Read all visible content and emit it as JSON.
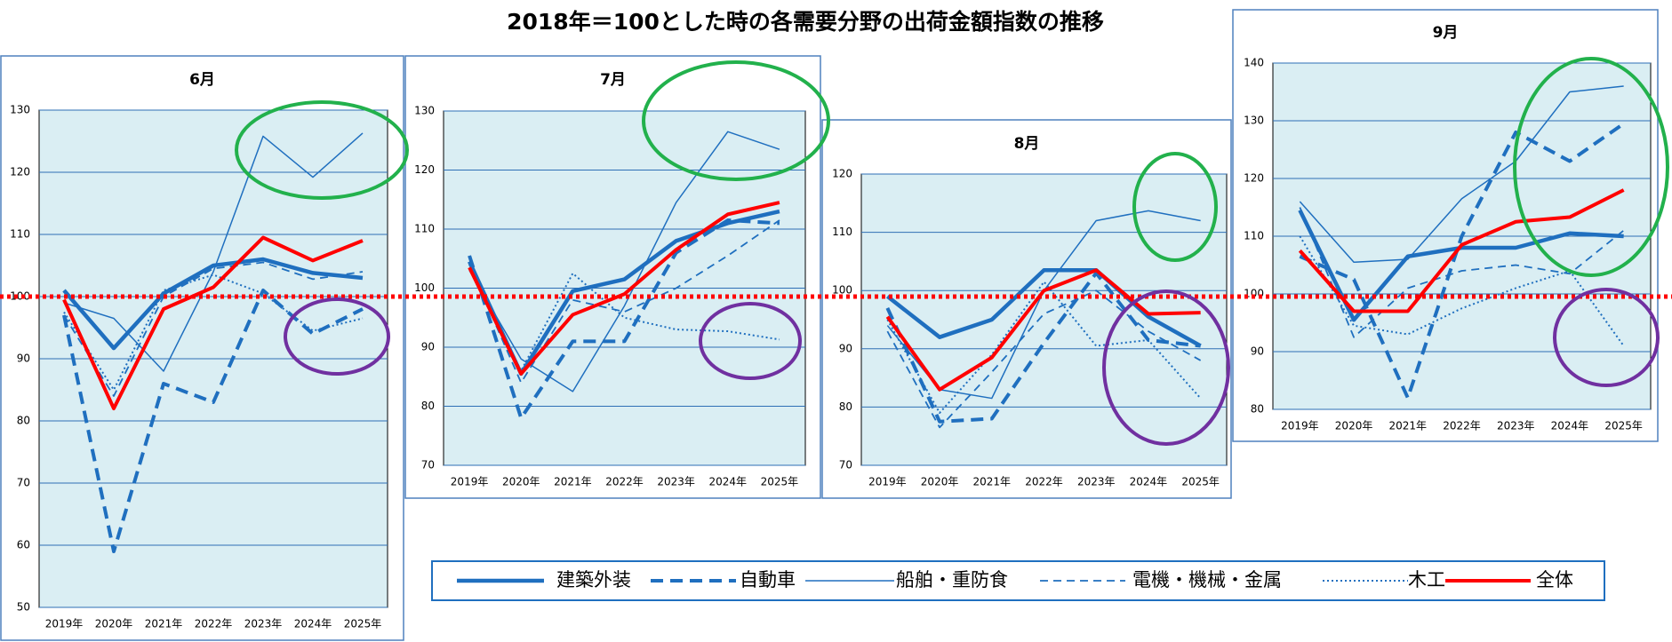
{
  "title": "2018年＝100とした時の各需要分野の出荷金額指数の推移",
  "reference_line": {
    "value": 100,
    "color": "#ff0000"
  },
  "chart_data": [
    {
      "type": "line",
      "title": "6月",
      "categories": [
        "2019年",
        "2020年",
        "2021年",
        "2022年",
        "2023年",
        "2024年",
        "2025年"
      ],
      "ylim": [
        50,
        130
      ],
      "yticks": [
        50,
        60,
        70,
        80,
        90,
        100,
        110,
        120,
        130
      ],
      "grid": true,
      "series": [
        {
          "name": "建築外装",
          "color": "#1f6fbf",
          "width": 4.5,
          "dash": "none",
          "values": [
            101,
            91.7,
            100.5,
            105,
            106,
            103.8,
            103
          ]
        },
        {
          "name": "自動車",
          "color": "#1f6fbf",
          "width": 4,
          "dash": "14,8",
          "values": [
            97,
            59,
            86,
            83,
            101,
            94,
            98
          ]
        },
        {
          "name": "船舶・重防食",
          "color": "#1f6fbf",
          "width": 1.5,
          "dash": "none",
          "values": [
            99,
            96.5,
            88,
            104,
            125.8,
            119.2,
            126.3
          ]
        },
        {
          "name": "電機・機械・金属",
          "color": "#1f6fbf",
          "width": 1.8,
          "dash": "9,6",
          "values": [
            97,
            84,
            100,
            104.5,
            105.5,
            102.8,
            104
          ]
        },
        {
          "name": "木工",
          "color": "#1f6fbf",
          "width": 2,
          "dash": "2,3",
          "values": [
            97.5,
            85,
            101,
            103.5,
            100.5,
            94.5,
            96.5
          ]
        },
        {
          "name": "全体",
          "color": "#ff0000",
          "width": 4,
          "dash": "none",
          "values": [
            99.5,
            82,
            98,
            101.5,
            109.5,
            105.8,
            109
          ]
        }
      ]
    },
    {
      "type": "line",
      "title": "7月",
      "categories": [
        "2019年",
        "2020年",
        "2021年",
        "2022年",
        "2023年",
        "2024年",
        "2025年"
      ],
      "ylim": [
        70,
        130
      ],
      "yticks": [
        70,
        80,
        90,
        100,
        110,
        120,
        130
      ],
      "grid": true,
      "series": [
        {
          "values": [
            104.5,
            85.5,
            99.5,
            101.5,
            108,
            111,
            113
          ]
        },
        {
          "values": [
            105.5,
            78,
            91,
            91,
            106,
            111.5,
            111
          ]
        },
        {
          "values": [
            103,
            88,
            82.5,
            97,
            114.5,
            126.5,
            123.5
          ]
        },
        {
          "values": [
            104,
            84,
            98,
            96,
            100,
            105.5,
            111.5
          ]
        },
        {
          "values": [
            104,
            86,
            102.5,
            95,
            93,
            92.7,
            91.3
          ]
        },
        {
          "values": [
            103.5,
            85.5,
            95.5,
            99,
            106.5,
            112.5,
            114.5
          ]
        }
      ]
    },
    {
      "type": "line",
      "title": "8月",
      "categories": [
        "2019年",
        "2020年",
        "2021年",
        "2022年",
        "2023年",
        "2024年",
        "2025年"
      ],
      "ylim": [
        70,
        120
      ],
      "yticks": [
        70,
        80,
        90,
        100,
        110,
        120
      ],
      "grid": true,
      "series": [
        {
          "values": [
            99,
            92,
            95,
            103.5,
            103.5,
            95.5,
            90.5
          ]
        },
        {
          "values": [
            97,
            77.5,
            78,
            91,
            103,
            91.5,
            90.5
          ]
        },
        {
          "values": [
            94,
            83,
            81.5,
            100,
            112,
            113.7,
            112
          ]
        },
        {
          "values": [
            93,
            76.5,
            86,
            96,
            100,
            93,
            88
          ]
        },
        {
          "values": [
            95,
            79,
            89,
            101.5,
            90.5,
            91.5,
            81.5
          ]
        },
        {
          "values": [
            95.5,
            83,
            88.5,
            100,
            103.5,
            96,
            96.2
          ]
        }
      ]
    },
    {
      "type": "line",
      "title": "9月",
      "categories": [
        "2019年",
        "2020年",
        "2021年",
        "2022年",
        "2023年",
        "2024年",
        "2025年"
      ],
      "ylim": [
        80,
        140
      ],
      "yticks": [
        80,
        90,
        100,
        110,
        120,
        130,
        140
      ],
      "grid": true,
      "series": [
        {
          "values": [
            114.5,
            95.5,
            106.5,
            108,
            108,
            110.5,
            110
          ]
        },
        {
          "values": [
            106.5,
            102.5,
            82,
            110,
            128,
            123,
            129.5
          ]
        },
        {
          "values": [
            116,
            105.5,
            106,
            116.5,
            123,
            135,
            136
          ]
        },
        {
          "values": [
            115,
            92.5,
            101,
            104,
            105,
            103.5,
            111
          ]
        },
        {
          "values": [
            110,
            94.5,
            93,
            97.5,
            101,
            104,
            91
          ]
        },
        {
          "values": [
            107.5,
            97,
            97,
            108.5,
            112.5,
            113.3,
            118
          ]
        }
      ]
    }
  ]
}
